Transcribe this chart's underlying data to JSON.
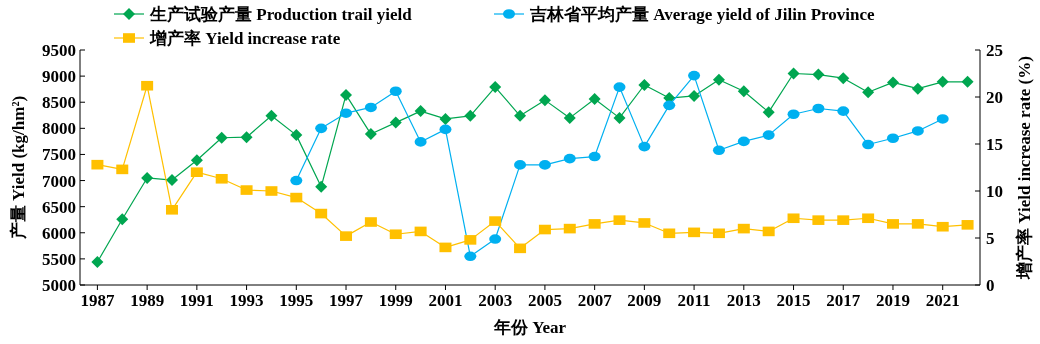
{
  "chart_data": {
    "type": "line",
    "xlabel": "年份 Year",
    "ylabel": "产量 Yield (kg/hm²)",
    "y2label": "增产率 Yield increase rate (%)",
    "x": [
      1987,
      1988,
      1989,
      1990,
      1991,
      1992,
      1993,
      1994,
      1995,
      1996,
      1997,
      1998,
      1999,
      2000,
      2001,
      2002,
      2003,
      2004,
      2005,
      2006,
      2007,
      2008,
      2009,
      2010,
      2011,
      2012,
      2013,
      2014,
      2015,
      2016,
      2017,
      2018,
      2019,
      2020,
      2021,
      2022
    ],
    "series": [
      {
        "name": "生产试验产量 Production trail yield",
        "color": "#00a650",
        "marker": "diamond",
        "values": [
          5440,
          6260,
          7050,
          7010,
          7390,
          7820,
          7830,
          8240,
          7870,
          6880,
          8640,
          7890,
          8110,
          8330,
          8180,
          8240,
          8790,
          8240,
          8540,
          8200,
          8560,
          8200,
          8830,
          8580,
          8620,
          8930,
          8710,
          8310,
          9050,
          9030,
          8960,
          8690,
          8880,
          8760,
          8890,
          8890
        ]
      },
      {
        "name": "吉林省平均产量 Average yield of Jilin Province",
        "color": "#00b0f0",
        "marker": "circle",
        "values": [
          null,
          null,
          null,
          null,
          null,
          null,
          null,
          null,
          7000,
          8000,
          8290,
          8400,
          8710,
          7740,
          7980,
          5550,
          5880,
          7300,
          7300,
          7420,
          7460,
          8790,
          7650,
          8440,
          9010,
          7580,
          7750,
          7870,
          8270,
          8380,
          8330,
          7690,
          7810,
          7950,
          8180,
          null
        ]
      },
      {
        "name": "增产率 Yield increase rate",
        "color": "#ffc000",
        "marker": "square",
        "axis": "y2",
        "values": [
          12.8,
          12.3,
          21.2,
          8.0,
          12.0,
          11.3,
          10.1,
          10.0,
          9.3,
          7.6,
          5.2,
          6.7,
          5.4,
          5.7,
          4.0,
          4.8,
          6.8,
          3.9,
          5.9,
          6.0,
          6.5,
          6.9,
          6.6,
          5.5,
          5.6,
          5.5,
          6.0,
          5.7,
          7.1,
          6.9,
          6.9,
          7.1,
          6.5,
          6.5,
          6.2,
          6.4
        ]
      }
    ],
    "xlim": [
      1986.3,
      2022.5
    ],
    "xticks": [
      1987,
      1989,
      1991,
      1993,
      1995,
      1997,
      1999,
      2001,
      2003,
      2005,
      2007,
      2009,
      2011,
      2013,
      2015,
      2017,
      2019,
      2021
    ],
    "ylim": [
      5000,
      9500
    ],
    "yticks": [
      5000,
      5500,
      6000,
      6500,
      7000,
      7500,
      8000,
      8500,
      9000,
      9500
    ],
    "y2lim": [
      0,
      25
    ],
    "y2ticks": [
      0,
      5,
      10,
      15,
      20,
      25
    ],
    "legend": "top",
    "grid": false,
    "line_style": "solid"
  }
}
